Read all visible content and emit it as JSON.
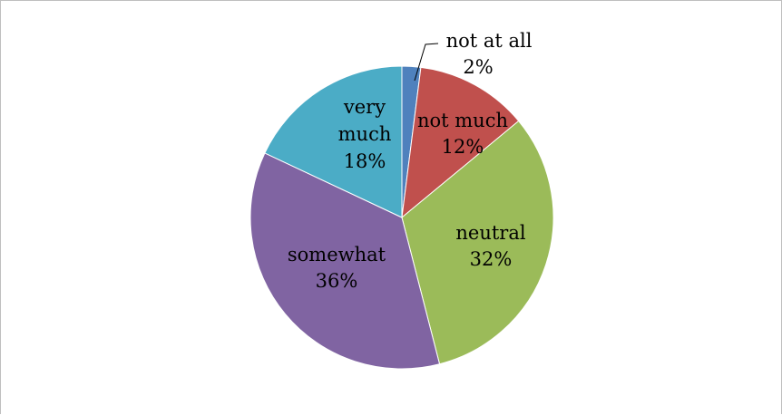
{
  "chart_data": {
    "type": "pie",
    "title": "",
    "slices": [
      {
        "label": "not at all",
        "value": 2,
        "display": "2%",
        "color": "#4f81bd"
      },
      {
        "label": "not much",
        "value": 12,
        "display": "12%",
        "color": "#c0504d"
      },
      {
        "label": "neutral",
        "value": 32,
        "display": "32%",
        "color": "#9bbb59"
      },
      {
        "label": "somewhat",
        "value": 36,
        "display": "36%",
        "color": "#8064a2"
      },
      {
        "label": "very much",
        "value": 18,
        "display": "18%",
        "color": "#4bacc6"
      }
    ],
    "start_angle_deg": 0,
    "direction": "clockwise",
    "legend": "none"
  }
}
